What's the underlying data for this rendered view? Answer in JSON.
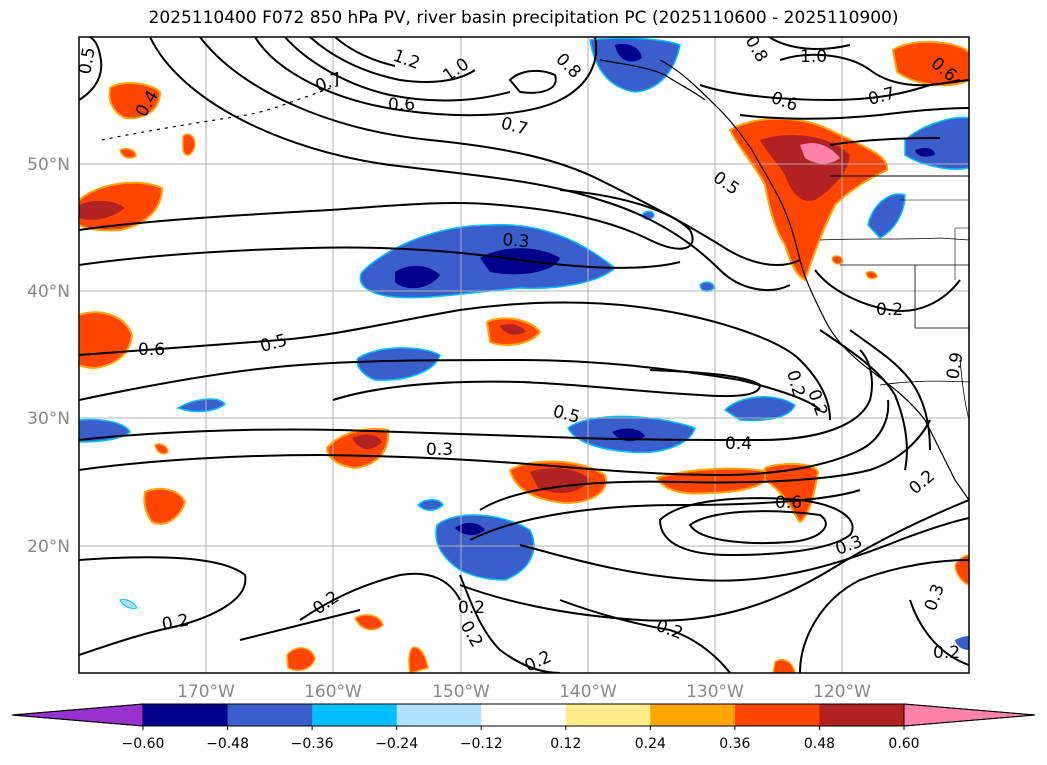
{
  "title": "2025110400 F072 850 hPa PV, river basin precipitation PC (2025110600 - 2025110900)",
  "axes": {
    "lat_labels": [
      "50°N",
      "40°N",
      "30°N",
      "20°N"
    ],
    "lon_labels": [
      "170°W",
      "160°W",
      "150°W",
      "140°W",
      "130°W",
      "120°W"
    ],
    "lon_range": [
      -180,
      -110
    ],
    "lat_range": [
      10,
      60
    ]
  },
  "colorbar": {
    "tick_labels": [
      "−0.60",
      "−0.48",
      "−0.36",
      "−0.24",
      "−0.12",
      "0.12",
      "0.24",
      "0.36",
      "0.48",
      "0.60"
    ],
    "colors": [
      "#9932cc",
      "#00008b",
      "#3a5fcd",
      "#00bfff",
      "#b0e2ff",
      "#ffffff",
      "#ffec8b",
      "#ffa500",
      "#ff4500",
      "#b22222",
      "#ff82ab"
    ]
  },
  "contour_labels": [
    "0.5",
    "0.4",
    "1.2",
    "1.0",
    "0.8",
    "0.7",
    "0.6",
    "1.0",
    "0.7",
    "0.8",
    "0.6",
    "0.7",
    "0.5",
    "0.3",
    "0.6",
    "0.5",
    "0.5",
    "0.3",
    "0.4",
    "0.6",
    "0.2",
    "0.2",
    "0.3",
    "0.2",
    "0.2",
    "0.2",
    "0.2",
    "0.2",
    "0.2",
    "0.3",
    "0.2",
    "0.9",
    "0.2",
    "0.6",
    "0.2"
  ],
  "colors": {
    "contour": "#000000",
    "grid": "#b0b0b0",
    "coast": "#000000"
  }
}
